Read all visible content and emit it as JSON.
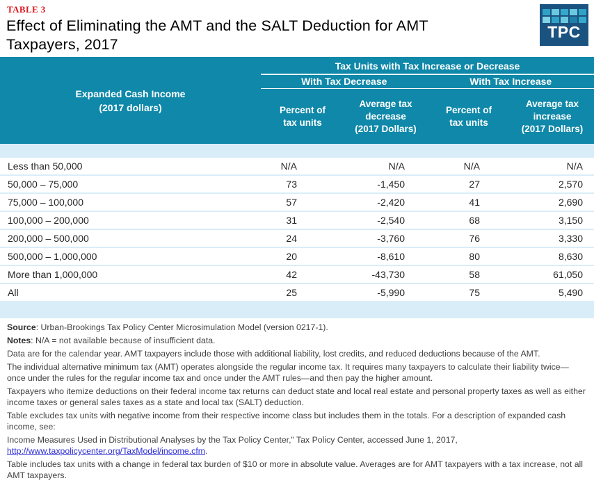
{
  "masthead": {
    "table_label": "TABLE 3",
    "title": "Effect of Eliminating the AMT and the SALT Deduction for AMT\nTaxpayers, 2017"
  },
  "logo": {
    "text": "TPC",
    "background": "#1B5380",
    "squares": [
      "#2FA3C6",
      "#6BC9DF",
      "#35A9CC",
      "#6BC9DF",
      "#2FA3C6",
      "#7FD4E6",
      "#2FA3C6",
      "#6BC9DF",
      "#1E7FA8",
      "#35A9CC"
    ]
  },
  "colors": {
    "header_teal": "#0F88A9",
    "band_blue": "#D9EDF8",
    "label_red": "#E0161F",
    "link_blue": "#2B2BD5"
  },
  "table": {
    "row_header": "Expanded Cash Income\n(2017 dollars)",
    "group_header": "Tax Units with Tax Increase or Decrease",
    "subgroup_decrease": "With Tax Decrease",
    "subgroup_increase": "With Tax Increase",
    "columns": [
      "Percent of\ntax units",
      "Average tax\ndecrease\n(2017 Dollars)",
      "Percent of\ntax units",
      "Average tax\nincrease\n(2017 Dollars)"
    ],
    "rows": [
      {
        "label": "Less than 50,000",
        "values": [
          "N/A",
          "N/A",
          "N/A",
          "N/A"
        ]
      },
      {
        "label": "50,000 – 75,000",
        "values": [
          "73",
          "-1,450",
          "27",
          "2,570"
        ]
      },
      {
        "label": "75,000 – 100,000",
        "values": [
          "57",
          "-2,420",
          "41",
          "2,690"
        ]
      },
      {
        "label": "100,000 – 200,000",
        "values": [
          "31",
          "-2,540",
          "68",
          "3,150"
        ]
      },
      {
        "label": "200,000 – 500,000",
        "values": [
          "24",
          "-3,760",
          "76",
          "3,330"
        ]
      },
      {
        "label": "500,000 – 1,000,000",
        "values": [
          "20",
          "-8,610",
          "80",
          "8,630"
        ]
      },
      {
        "label": "More than 1,000,000",
        "values": [
          "42",
          "-43,730",
          "58",
          "61,050"
        ]
      },
      {
        "label": "All",
        "values": [
          "25",
          "-5,990",
          "75",
          "5,490"
        ]
      }
    ]
  },
  "notes": {
    "source_label": "Source",
    "source_text": ": Urban-Brookings Tax Policy Center Microsimulation Model (version 0217-1).",
    "notes_label": "Notes",
    "notes_text": ": N/A = not available because of insufficient data.",
    "paragraphs": [
      "Data are for the calendar year. AMT taxpayers include those with additional liability, lost credits, and reduced deductions because of the AMT.",
      "The individual alternative minimum tax (AMT) operates alongside the regular income tax. It requires many taxpayers to calculate their liability twice—once under the rules for the regular income tax and once under the AMT rules—and then pay the higher amount.",
      "Taxpayers who itemize deductions on their federal income tax returns can deduct state and local real estate and personal property taxes as well as either income taxes or general sales taxes as a state and local tax (SALT) deduction.",
      "Table excludes tax units with negative income from their respective income class but includes them in the totals. For a description of expanded cash income, see:"
    ],
    "citation": "Income Measures Used in Distributional Analyses by the Tax Policy Center,\" Tax Policy Center, accessed June 1, 2017,",
    "link_text": "http://www.taxpolicycenter.org/TaxModel/income.cfm",
    "link_suffix": ".",
    "final": "Table includes tax units with a change in federal tax burden of $10 or more in absolute value. Averages are for AMT taxpayers with a tax increase, not all AMT taxpayers."
  }
}
